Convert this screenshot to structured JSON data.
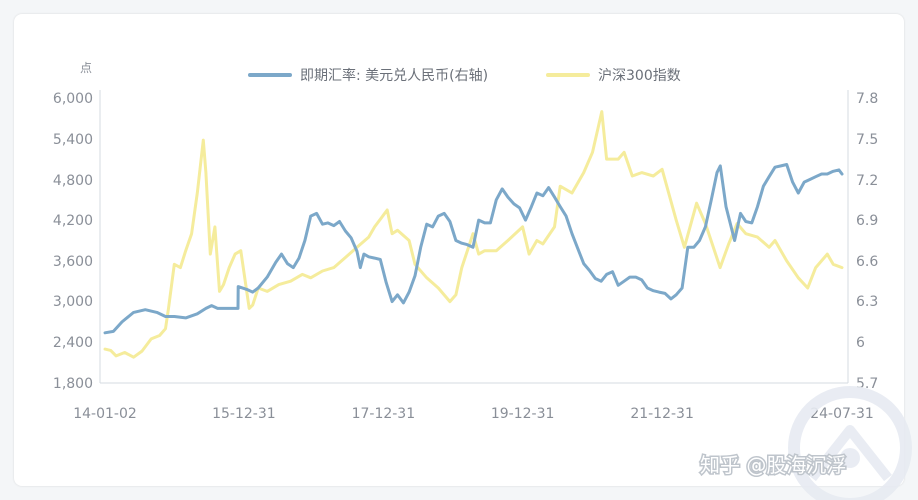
{
  "chart_data": {
    "type": "line",
    "y_left_unit": "点",
    "y_left_ticks": [
      "6,000",
      "5,400",
      "4,800",
      "4,200",
      "3,600",
      "3,000",
      "2,400",
      "1,800"
    ],
    "y_right_ticks": [
      "7.8",
      "7.5",
      "7.2",
      "6.9",
      "6.6",
      "6.3",
      "6",
      "5.7"
    ],
    "ylim_left": [
      1800,
      6000
    ],
    "ylim_right": [
      5.7,
      7.8
    ],
    "xlim": [
      "2014-01-02",
      "2024-07-31"
    ],
    "x_ticks": [
      {
        "label": "14-01-02",
        "date": "2014-01-02"
      },
      {
        "label": "15-12-31",
        "date": "2015-12-31"
      },
      {
        "label": "17-12-31",
        "date": "2017-12-31"
      },
      {
        "label": "19-12-31",
        "date": "2019-12-31"
      },
      {
        "label": "21-12-31",
        "date": "2021-12-31"
      },
      {
        "label": "24-07-31",
        "date": "2024-07-31"
      }
    ],
    "series": [
      {
        "name": "即期汇率: 美元兑人民币(右轴)",
        "axis": "right",
        "color": "#7ca8c9",
        "points": [
          [
            "2014-01-02",
            6.07
          ],
          [
            "2014-02-15",
            6.08
          ],
          [
            "2014-04-01",
            6.15
          ],
          [
            "2014-06-01",
            6.22
          ],
          [
            "2014-08-01",
            6.24
          ],
          [
            "2014-10-01",
            6.22
          ],
          [
            "2014-11-15",
            6.19
          ],
          [
            "2015-01-01",
            6.19
          ],
          [
            "2015-03-01",
            6.18
          ],
          [
            "2015-05-01",
            6.21
          ],
          [
            "2015-06-15",
            6.25
          ],
          [
            "2015-07-15",
            6.27
          ],
          [
            "2015-08-15",
            6.25
          ],
          [
            "2015-09-01",
            6.25
          ],
          [
            "2015-10-15",
            6.25
          ],
          [
            "2015-11-30",
            6.25
          ],
          [
            "2015-12-01",
            6.41
          ],
          [
            "2016-01-15",
            6.39
          ],
          [
            "2016-02-15",
            6.37
          ],
          [
            "2016-03-15",
            6.4
          ],
          [
            "2016-05-01",
            6.48
          ],
          [
            "2016-06-15",
            6.59
          ],
          [
            "2016-07-15",
            6.65
          ],
          [
            "2016-08-15",
            6.58
          ],
          [
            "2016-09-15",
            6.55
          ],
          [
            "2016-10-15",
            6.62
          ],
          [
            "2016-11-15",
            6.75
          ],
          [
            "2016-12-15",
            6.93
          ],
          [
            "2017-01-15",
            6.95
          ],
          [
            "2017-02-15",
            6.87
          ],
          [
            "2017-03-15",
            6.88
          ],
          [
            "2017-04-15",
            6.86
          ],
          [
            "2017-05-15",
            6.89
          ],
          [
            "2017-06-15",
            6.82
          ],
          [
            "2017-07-15",
            6.77
          ],
          [
            "2017-08-15",
            6.67
          ],
          [
            "2017-09-01",
            6.55
          ],
          [
            "2017-09-20",
            6.65
          ],
          [
            "2017-10-15",
            6.63
          ],
          [
            "2017-11-15",
            6.62
          ],
          [
            "2017-12-15",
            6.61
          ],
          [
            "2018-01-15",
            6.44
          ],
          [
            "2018-02-15",
            6.3
          ],
          [
            "2018-03-15",
            6.35
          ],
          [
            "2018-04-15",
            6.29
          ],
          [
            "2018-05-15",
            6.37
          ],
          [
            "2018-06-15",
            6.49
          ],
          [
            "2018-07-15",
            6.7
          ],
          [
            "2018-08-15",
            6.87
          ],
          [
            "2018-09-15",
            6.85
          ],
          [
            "2018-10-15",
            6.93
          ],
          [
            "2018-11-15",
            6.95
          ],
          [
            "2018-12-15",
            6.89
          ],
          [
            "2019-01-15",
            6.75
          ],
          [
            "2019-02-15",
            6.73
          ],
          [
            "2019-03-15",
            6.72
          ],
          [
            "2019-04-15",
            6.7
          ],
          [
            "2019-05-15",
            6.9
          ],
          [
            "2019-06-15",
            6.88
          ],
          [
            "2019-07-15",
            6.88
          ],
          [
            "2019-08-15",
            7.05
          ],
          [
            "2019-09-15",
            7.13
          ],
          [
            "2019-10-15",
            7.07
          ],
          [
            "2019-11-15",
            7.02
          ],
          [
            "2019-12-15",
            6.99
          ],
          [
            "2020-01-15",
            6.9
          ],
          [
            "2020-02-15",
            7.0
          ],
          [
            "2020-03-15",
            7.1
          ],
          [
            "2020-04-15",
            7.08
          ],
          [
            "2020-05-15",
            7.14
          ],
          [
            "2020-06-15",
            7.07
          ],
          [
            "2020-07-15",
            7.0
          ],
          [
            "2020-08-15",
            6.93
          ],
          [
            "2020-09-15",
            6.8
          ],
          [
            "2020-10-15",
            6.69
          ],
          [
            "2020-11-15",
            6.58
          ],
          [
            "2020-12-15",
            6.53
          ],
          [
            "2021-01-15",
            6.47
          ],
          [
            "2021-02-15",
            6.45
          ],
          [
            "2021-03-15",
            6.5
          ],
          [
            "2021-04-15",
            6.52
          ],
          [
            "2021-05-15",
            6.42
          ],
          [
            "2021-06-15",
            6.45
          ],
          [
            "2021-07-15",
            6.48
          ],
          [
            "2021-08-15",
            6.48
          ],
          [
            "2021-09-15",
            6.46
          ],
          [
            "2021-10-15",
            6.4
          ],
          [
            "2021-11-15",
            6.38
          ],
          [
            "2021-12-15",
            6.37
          ],
          [
            "2022-01-15",
            6.36
          ],
          [
            "2022-02-15",
            6.32
          ],
          [
            "2022-03-15",
            6.35
          ],
          [
            "2022-04-15",
            6.4
          ],
          [
            "2022-05-15",
            6.7
          ],
          [
            "2022-06-15",
            6.7
          ],
          [
            "2022-07-15",
            6.75
          ],
          [
            "2022-08-15",
            6.85
          ],
          [
            "2022-09-15",
            7.05
          ],
          [
            "2022-10-15",
            7.25
          ],
          [
            "2022-11-01",
            7.3
          ],
          [
            "2022-12-01",
            7.0
          ],
          [
            "2023-01-15",
            6.75
          ],
          [
            "2023-02-15",
            6.95
          ],
          [
            "2023-03-15",
            6.89
          ],
          [
            "2023-04-15",
            6.88
          ],
          [
            "2023-05-15",
            7.0
          ],
          [
            "2023-06-15",
            7.15
          ],
          [
            "2023-07-15",
            7.22
          ],
          [
            "2023-08-15",
            7.29
          ],
          [
            "2023-09-15",
            7.3
          ],
          [
            "2023-10-15",
            7.31
          ],
          [
            "2023-11-15",
            7.18
          ],
          [
            "2023-12-15",
            7.1
          ],
          [
            "2024-01-15",
            7.18
          ],
          [
            "2024-02-15",
            7.2
          ],
          [
            "2024-03-15",
            7.22
          ],
          [
            "2024-04-15",
            7.24
          ],
          [
            "2024-05-15",
            7.24
          ],
          [
            "2024-06-15",
            7.26
          ],
          [
            "2024-07-15",
            7.27
          ],
          [
            "2024-07-31",
            7.24
          ]
        ]
      },
      {
        "name": "沪深300指数",
        "axis": "left",
        "color": "#f5ec9c",
        "points": [
          [
            "2014-01-02",
            2300
          ],
          [
            "2014-02-01",
            2280
          ],
          [
            "2014-03-01",
            2200
          ],
          [
            "2014-04-15",
            2250
          ],
          [
            "2014-06-01",
            2180
          ],
          [
            "2014-07-15",
            2270
          ],
          [
            "2014-09-01",
            2450
          ],
          [
            "2014-10-15",
            2500
          ],
          [
            "2014-11-15",
            2600
          ],
          [
            "2014-12-01",
            2900
          ],
          [
            "2014-12-31",
            3550
          ],
          [
            "2015-02-01",
            3500
          ],
          [
            "2015-03-01",
            3750
          ],
          [
            "2015-04-01",
            4000
          ],
          [
            "2015-05-01",
            4600
          ],
          [
            "2015-06-01",
            5380
          ],
          [
            "2015-06-15",
            4900
          ],
          [
            "2015-07-08",
            3700
          ],
          [
            "2015-08-01",
            4100
          ],
          [
            "2015-08-25",
            3150
          ],
          [
            "2015-09-15",
            3250
          ],
          [
            "2015-10-15",
            3500
          ],
          [
            "2015-11-15",
            3700
          ],
          [
            "2015-12-15",
            3750
          ],
          [
            "2016-01-28",
            2900
          ],
          [
            "2016-02-15",
            2950
          ],
          [
            "2016-03-15",
            3200
          ],
          [
            "2016-05-01",
            3150
          ],
          [
            "2016-07-01",
            3250
          ],
          [
            "2016-09-01",
            3300
          ],
          [
            "2016-11-01",
            3400
          ],
          [
            "2016-12-15",
            3350
          ],
          [
            "2017-02-15",
            3450
          ],
          [
            "2017-04-15",
            3500
          ],
          [
            "2017-06-15",
            3650
          ],
          [
            "2017-08-15",
            3800
          ],
          [
            "2017-10-15",
            3950
          ],
          [
            "2017-11-15",
            4100
          ],
          [
            "2018-01-20",
            4350
          ],
          [
            "2018-02-15",
            4000
          ],
          [
            "2018-03-15",
            4050
          ],
          [
            "2018-05-15",
            3900
          ],
          [
            "2018-06-15",
            3550
          ],
          [
            "2018-08-15",
            3350
          ],
          [
            "2018-10-15",
            3200
          ],
          [
            "2018-12-15",
            3000
          ],
          [
            "2019-01-15",
            3100
          ],
          [
            "2019-02-15",
            3500
          ],
          [
            "2019-04-15",
            4000
          ],
          [
            "2019-05-15",
            3700
          ],
          [
            "2019-06-15",
            3750
          ],
          [
            "2019-08-15",
            3750
          ],
          [
            "2019-10-15",
            3900
          ],
          [
            "2019-12-31",
            4100
          ],
          [
            "2020-02-03",
            3700
          ],
          [
            "2020-03-15",
            3900
          ],
          [
            "2020-04-15",
            3850
          ],
          [
            "2020-06-15",
            4100
          ],
          [
            "2020-07-15",
            4700
          ],
          [
            "2020-09-15",
            4600
          ],
          [
            "2020-11-15",
            4900
          ],
          [
            "2020-12-31",
            5200
          ],
          [
            "2021-02-18",
            5800
          ],
          [
            "2021-03-15",
            5100
          ],
          [
            "2021-05-15",
            5100
          ],
          [
            "2021-06-15",
            5200
          ],
          [
            "2021-07-28",
            4850
          ],
          [
            "2021-09-15",
            4900
          ],
          [
            "2021-11-15",
            4850
          ],
          [
            "2021-12-31",
            4950
          ],
          [
            "2022-03-15",
            4200
          ],
          [
            "2022-04-27",
            3800
          ],
          [
            "2022-06-30",
            4450
          ],
          [
            "2022-08-15",
            4150
          ],
          [
            "2022-10-31",
            3500
          ],
          [
            "2022-12-15",
            3850
          ],
          [
            "2023-01-28",
            4150
          ],
          [
            "2023-03-15",
            4000
          ],
          [
            "2023-05-15",
            3950
          ],
          [
            "2023-07-15",
            3800
          ],
          [
            "2023-08-15",
            3900
          ],
          [
            "2023-10-15",
            3600
          ],
          [
            "2023-12-15",
            3350
          ],
          [
            "2024-02-02",
            3200
          ],
          [
            "2024-03-15",
            3500
          ],
          [
            "2024-05-15",
            3700
          ],
          [
            "2024-06-15",
            3550
          ],
          [
            "2024-07-31",
            3500
          ]
        ]
      }
    ],
    "legend_position": "top-center",
    "grid": false
  },
  "watermark": {
    "text": "知乎 @股海沉浮",
    "logo": "Decorative watermark logo"
  }
}
